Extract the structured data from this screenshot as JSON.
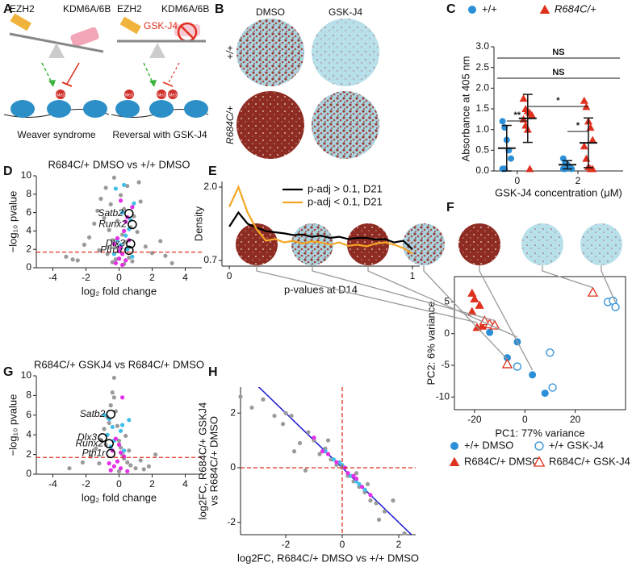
{
  "panel_labels": [
    "A",
    "B",
    "C",
    "D",
    "E",
    "F",
    "G",
    "H"
  ],
  "diagram": {
    "left": {
      "enzymes": [
        "EZH2",
        "KDM6A/6B"
      ],
      "caption": "Weaver syndrome"
    },
    "right": {
      "enzymes": [
        "EZH2",
        "KDM6A/6B"
      ],
      "inhibitor": "GSK-J4",
      "caption": "Reversal with GSK-J4"
    },
    "histone_mark": "Me3"
  },
  "images": {
    "columns": [
      "DMSO",
      "GSK-J4"
    ],
    "rows": [
      "+/+",
      "R684C/+"
    ]
  },
  "chart_data": [
    {
      "type": "dot",
      "categories": [
        "0",
        "2"
      ],
      "xlabel": "GSK-J4 concentration (μM)",
      "ylabel": "Absorbance at 405 nm",
      "ylim": [
        0,
        3.0
      ],
      "yticks": [
        {
          "value": 0,
          "label": "0.0"
        },
        0.5,
        {
          "value": 1,
          "label": "1.0"
        },
        1.5,
        {
          "value": 2,
          "label": "2.0"
        },
        2.5,
        {
          "value": 3,
          "label": "3.0"
        }
      ],
      "legend": "top",
      "brackets": [
        "NS",
        "NS",
        "**",
        "*",
        "*"
      ],
      "series": [
        {
          "name": "+/+",
          "color": "#2b8fd8",
          "marker": "circle",
          "points": [
            [
              1.2,
              1.05,
              0.75,
              0.5,
              0.3,
              0.05,
              0.05
            ],
            [
              0.3,
              0.2,
              0.15,
              0.1,
              0.05,
              0.05,
              0.05
            ]
          ],
          "mean": [
            0.55,
            0.15
          ],
          "sd": [
            0.55,
            0.1
          ]
        },
        {
          "name": "R684C/+",
          "color": "#e0301e",
          "marker": "triangle",
          "points": [
            [
              1.75,
              1.5,
              1.45,
              1.4,
              1.35,
              1.25,
              1.1,
              1.0,
              0.05
            ],
            [
              1.7,
              1.55,
              1.2,
              1.05,
              0.75,
              0.6,
              0.3,
              0.1,
              0.05,
              0.05
            ]
          ],
          "mean": [
            1.27,
            0.68
          ],
          "sd": [
            0.58,
            0.6
          ]
        }
      ]
    },
    {
      "type": "scatter",
      "title": "R684C/+ DMSO vs +/+ DMSO",
      "xlabel": "log₂ fold change",
      "ylabel": "−log₁₀ pvalue",
      "xlim": [
        -5,
        5
      ],
      "xticks": [
        -4,
        -2,
        0,
        2,
        4
      ],
      "ylim": [
        0,
        10
      ],
      "yticks": [
        0,
        2,
        4,
        6,
        8,
        10
      ],
      "hline": 1.7,
      "hline_color": "#e0301e",
      "series": [
        {
          "color": "#9a9a9a",
          "marker": "circle",
          "x": [
            -3.2,
            -2.5,
            -2.1,
            -1.8,
            -1.5,
            -1.3,
            -1.1,
            -0.9,
            -0.8,
            -0.6,
            -0.5,
            -0.4,
            -0.3,
            -0.2,
            -0.1,
            0,
            0.1,
            0.2,
            0.3,
            0.4,
            0.5,
            0.7,
            0.9,
            1.1,
            1.3,
            1.6,
            2,
            2.5,
            3.2,
            -0.7,
            0.6,
            -1.2,
            1.2,
            -0.4,
            0.3,
            -0.2,
            0.8,
            2.8,
            -2.8,
            0.2
          ],
          "y": [
            1.2,
            0.8,
            2.5,
            3.3,
            4.8,
            6.2,
            7.5,
            5.4,
            8.7,
            4.1,
            6.9,
            3.0,
            9.8,
            2.2,
            5.1,
            1.0,
            7.9,
            3.6,
            6.4,
            2.8,
            8.9,
            4.4,
            5.6,
            3.9,
            7.2,
            2.3,
            1.6,
            2.9,
            0.5,
            1.5,
            1.1,
            1.9,
            9.3,
            0.6,
            0.4,
            0.9,
            0.7,
            1.3,
            0.9,
            6.0
          ]
        },
        {
          "color": "#3fbfe8",
          "marker": "circle",
          "x": [
            -0.3,
            0.1,
            0.4,
            0.6,
            0.9,
            -0.2,
            0.3,
            0.7,
            0.2,
            -0.1,
            0.5,
            0.8
          ],
          "y": [
            1.5,
            2.5,
            3.5,
            4.2,
            7.0,
            8.6,
            9.0,
            5.2,
            6.0,
            3.0,
            2.0,
            1.2
          ]
        },
        {
          "color": "#e62ee6",
          "marker": "circle",
          "x": [
            -0.2,
            0,
            0.2,
            0.4,
            0.1,
            -0.1,
            0.3,
            0.5,
            0.8,
            -0.3,
            0.1,
            0.6,
            0.2,
            0,
            0.4
          ],
          "y": [
            0.5,
            1.0,
            1.5,
            0.8,
            2.2,
            3.2,
            4.0,
            5.5,
            6.6,
            2.6,
            7.3,
            3.0,
            0.3,
            1.8,
            5.0
          ]
        }
      ],
      "annotations": [
        {
          "text": "Satb2",
          "x": 0.6,
          "y": 5.9
        },
        {
          "text": "Runx2",
          "x": 0.8,
          "y": 4.7
        },
        {
          "text": "Dlx3",
          "x": 0.7,
          "y": 2.6
        },
        {
          "text": "Pth1r",
          "x": 0.6,
          "y": 1.9
        }
      ]
    },
    {
      "type": "line",
      "xlabel": "p-values at D14",
      "ylabel": "Density",
      "xlim": [
        -0.04,
        1.04
      ],
      "xticks": [
        0,
        1
      ],
      "ylim": [
        0.6,
        2.1
      ],
      "yticks": [
        0.7,
        {
          "value": 2,
          "label": "2.0"
        }
      ],
      "legend": "top-right",
      "x": [
        0,
        0.05,
        0.1,
        0.15,
        0.2,
        0.25,
        0.3,
        0.35,
        0.4,
        0.45,
        0.5,
        0.55,
        0.6,
        0.65,
        0.7,
        0.75,
        0.8,
        0.85,
        0.9,
        0.95,
        1
      ],
      "series": [
        {
          "name": "p-adj > 0.1, D21",
          "color": "#000000",
          "values": [
            1.3,
            1.55,
            1.35,
            1.28,
            1.22,
            1.2,
            1.18,
            1.15,
            1.16,
            1.12,
            1.14,
            1.1,
            1.12,
            1.08,
            1.1,
            1.1,
            1.07,
            1.08,
            1.02,
            1.05,
            0.9
          ]
        },
        {
          "name": "p-adj < 0.1, D21",
          "color": "#f5a623",
          "values": [
            1.65,
            2.0,
            1.55,
            1.25,
            1.05,
            1.08,
            1.02,
            1.05,
            1.0,
            1.04,
            1.02,
            0.98,
            1.02,
            0.96,
            0.98,
            0.95,
            1.0,
            1.02,
            0.98,
            0.92,
            0.82
          ]
        }
      ]
    },
    {
      "type": "scatter",
      "frame": true,
      "xlabel": "PC1: 77% variance",
      "ylabel": "PC2: 6% variance",
      "xlim": [
        -28,
        40
      ],
      "xticks": [
        -20,
        0,
        20
      ],
      "ylim": [
        -12,
        9
      ],
      "yticks": [
        -10,
        -5,
        0,
        5
      ],
      "legend": "bottom",
      "series": [
        {
          "name": "+/+ DMSO",
          "color": "#2b8fd8",
          "marker": "circle",
          "x": [
            -14,
            -3,
            -7,
            3,
            8
          ],
          "y": [
            0.2,
            -1.3,
            -3.8,
            -6.5,
            -9.4
          ]
        },
        {
          "name": "+/+ GSK-J4",
          "color": "#2b8fd8",
          "marker": "circle-open",
          "x": [
            -3,
            10,
            11,
            33,
            35,
            36
          ],
          "y": [
            -5.2,
            -3,
            -8.5,
            5,
            5.2,
            4.2
          ]
        },
        {
          "name": "R684C/+ DMSO",
          "color": "#e0301e",
          "marker": "triangle",
          "x": [
            -21,
            -20,
            -21,
            -18,
            -19,
            -17
          ],
          "y": [
            6.4,
            5.5,
            3.5,
            4.5,
            1,
            1.2
          ]
        },
        {
          "name": "R684C/+ GSK-J4",
          "color": "#e0301e",
          "marker": "triangle-open",
          "x": [
            -16,
            -14,
            -12,
            -7,
            27
          ],
          "y": [
            2,
            1.5,
            1.3,
            -4.8,
            6.5
          ]
        }
      ]
    },
    {
      "type": "scatter",
      "title": "R684C/+ GSKJ4 vs R684C/+ DMSO",
      "xlabel": "log₂ fold change",
      "ylabel": "−log₁₀ pvalue",
      "xlim": [
        -5,
        5
      ],
      "xticks": [
        -4,
        -2,
        0,
        2,
        4
      ],
      "ylim": [
        0,
        10
      ],
      "yticks": [
        0,
        2,
        4,
        6,
        8,
        10
      ],
      "hline": 1.7,
      "hline_color": "#e0301e",
      "series": [
        {
          "color": "#9a9a9a",
          "marker": "circle",
          "x": [
            -3.0,
            -2.2,
            -1.7,
            -1.4,
            -1.1,
            -0.9,
            -0.7,
            -0.5,
            -0.4,
            -0.3,
            -0.2,
            -0.1,
            0,
            0.1,
            0.2,
            0.3,
            0.5,
            0.7,
            1,
            1.3,
            1.8,
            2.2,
            -0.6,
            0.4,
            -0.8,
            0.6,
            -1.2,
            1.5,
            0,
            -0.3
          ],
          "y": [
            0.6,
            1.2,
            1.8,
            2.6,
            3.5,
            4.6,
            5.8,
            7.0,
            8.3,
            9.8,
            6.4,
            4.9,
            3.4,
            2.7,
            2.0,
            1.6,
            1.2,
            0.9,
            0.6,
            1.4,
            0.8,
            2.0,
            5.2,
            3.9,
            3.0,
            2.4,
            1.1,
            0.5,
            0.3,
            7.8
          ]
        },
        {
          "color": "#3fbfe8",
          "marker": "circle",
          "x": [
            -0.9,
            -0.6,
            -0.4,
            0.2,
            0.6,
            -0.7,
            -0.3,
            0.1,
            -0.5,
            0.3
          ],
          "y": [
            6.0,
            5.6,
            4.8,
            5.0,
            5.5,
            4.0,
            3.4,
            4.4,
            2.8,
            2.4
          ]
        },
        {
          "color": "#e62ee6",
          "marker": "circle",
          "x": [
            -0.5,
            -0.3,
            -0.1,
            0.1,
            0.3,
            -0.4,
            0,
            0.2,
            -0.2,
            0.5,
            0.1,
            -0.6
          ],
          "y": [
            0.4,
            0.8,
            1.3,
            0.6,
            1.8,
            2.4,
            3.0,
            7.8,
            3.6,
            0.3,
            2.2,
            1.1
          ]
        }
      ],
      "annotations": [
        {
          "text": "Satb2",
          "x": -0.5,
          "y": 6.1
        },
        {
          "text": "Dlx3",
          "x": -1.0,
          "y": 3.7
        },
        {
          "text": "Runx2",
          "x": -0.6,
          "y": 3.1
        },
        {
          "text": "Pth1r",
          "x": -0.5,
          "y": 2.1
        }
      ]
    },
    {
      "type": "scatter",
      "xlabel": "log2FC, R684C/+ DMSO vs +/+ DMSO",
      "ylabel": [
        "log2FC, R684C/+ GSKJ4",
        "vs R684C/+ DMSO"
      ],
      "xlim": [
        -3.6,
        2.6
      ],
      "xticks": [
        -2,
        0,
        2
      ],
      "ylim": [
        -2.45,
        2.95
      ],
      "yticks": [
        -2,
        0,
        2
      ],
      "hline": 0,
      "vline": 0,
      "hline_color": "#e0301e",
      "refline": {
        "slope": -1,
        "intercept": 0,
        "color": "#1a1ad0"
      },
      "series": [
        {
          "color": "#9a9a9a",
          "marker": "circle",
          "x": [
            -3.6,
            -3.2,
            -2.8,
            -2.4,
            -2.1,
            -1.8,
            -1.5,
            -1.2,
            -1,
            -0.8,
            -0.6,
            -0.4,
            -0.2,
            0,
            0.2,
            0.4,
            0.6,
            0.8,
            1,
            1.2,
            1.5,
            1.8,
            2.2,
            -1.7,
            -0.5,
            0.5,
            1.3,
            -2.0,
            -1.3,
            0.9
          ],
          "y": [
            2.6,
            2.2,
            2.5,
            1.9,
            1.6,
            1.9,
            0.9,
            1.3,
            1.0,
            0.5,
            0.7,
            0.3,
            0.1,
            0,
            -0.3,
            -0.5,
            -0.7,
            -0.9,
            -1.2,
            -1.3,
            -1.6,
            -1.2,
            -2.4,
            0.6,
            1.0,
            -0.2,
            -1.9,
            2.0,
            -0.1,
            -0.6
          ]
        },
        {
          "color": "#3fbfe8",
          "marker": "circle",
          "x": [
            -0.6,
            -0.3,
            0,
            0.3,
            0.6,
            0.8,
            -0.1,
            0.5
          ],
          "y": [
            0.6,
            0.3,
            0.1,
            -0.3,
            -0.6,
            -0.8,
            0.2,
            -0.5
          ]
        },
        {
          "color": "#e62ee6",
          "marker": "circle",
          "x": [
            -1,
            -0.5,
            -0.2,
            0.2,
            0.5,
            0.7,
            1,
            0.4,
            -0.7,
            0.1
          ],
          "y": [
            1.1,
            0.5,
            0.2,
            -0.2,
            -0.4,
            -0.7,
            -1,
            -0.3,
            0.6,
            0
          ]
        }
      ]
    }
  ]
}
